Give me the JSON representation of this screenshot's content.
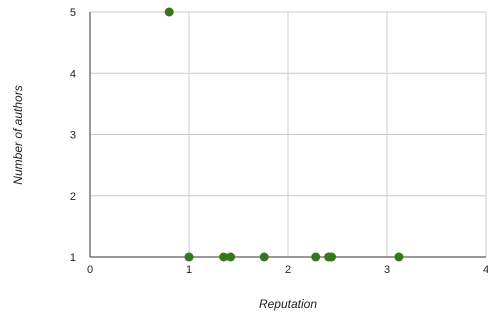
{
  "chart_data": {
    "type": "scatter",
    "title": "",
    "xlabel": "Reputation",
    "ylabel": "Number of authors",
    "xlim": [
      0,
      4
    ],
    "ylim": [
      1,
      5
    ],
    "x_ticks": [
      "0",
      "1",
      "2",
      "3",
      "4"
    ],
    "y_ticks": [
      "1",
      "2",
      "3",
      "4",
      "5"
    ],
    "grid": true,
    "legend": "none",
    "series": [
      {
        "color": "#38761d",
        "points": [
          {
            "x": 0.8,
            "y": 5
          },
          {
            "x": 1.0,
            "y": 1
          },
          {
            "x": 1.35,
            "y": 1
          },
          {
            "x": 1.42,
            "y": 1
          },
          {
            "x": 1.76,
            "y": 1
          },
          {
            "x": 2.28,
            "y": 1
          },
          {
            "x": 2.41,
            "y": 1
          },
          {
            "x": 2.44,
            "y": 1
          },
          {
            "x": 3.12,
            "y": 1
          }
        ]
      }
    ]
  }
}
